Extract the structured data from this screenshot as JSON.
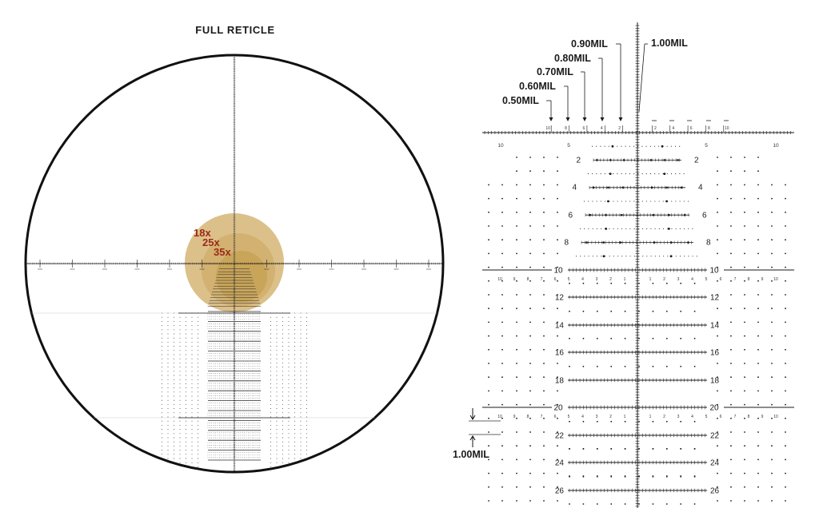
{
  "full_reticle_title": "FULL RETICLE",
  "magnification_labels": [
    "18x",
    "25x",
    "35x"
  ],
  "mil_callouts": [
    "0.90MIL",
    "0.80MIL",
    "0.70MIL",
    "0.60MIL",
    "0.50MIL"
  ],
  "mil_callout_right": "1.00MIL",
  "spacing_callout": "1.00MIL",
  "top_scale_left_labels": [
    "10",
    "8",
    "6",
    "4",
    "2"
  ],
  "top_scale_right_labels": [
    "2",
    "4",
    "6",
    "8",
    "10"
  ],
  "horizon_left_labels": [
    "10",
    "5"
  ],
  "horizon_right_labels": [
    "5",
    "10"
  ],
  "upper_tree_rows": [
    "2",
    "4",
    "6",
    "8"
  ],
  "lower_tree_rows": [
    "10",
    "12",
    "14",
    "16",
    "18",
    "20",
    "22",
    "24",
    "26"
  ],
  "wide_row_labels": [
    "10",
    "9",
    "8",
    "7",
    "6"
  ],
  "inner_row_labels": [
    "5",
    "4",
    "3",
    "2",
    "1"
  ],
  "colors": {
    "ink": "#1a1a1a",
    "magnification": "#9b2a17",
    "zoom_disc_outer": "#dcc08a",
    "zoom_disc_mid": "#d3b170",
    "zoom_disc_inner": "#c9a55a",
    "background": "#ffffff"
  }
}
